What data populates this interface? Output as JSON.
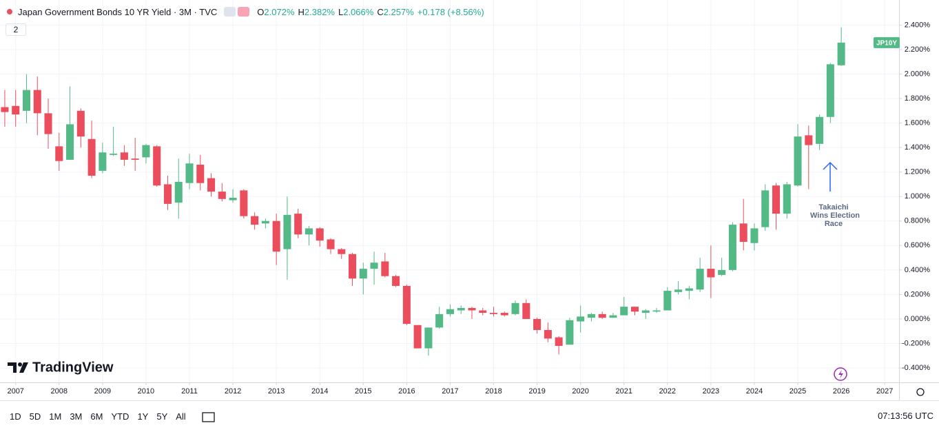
{
  "chart_data": {
    "type": "candlestick",
    "title": "Japan Government Bonds 10 YR Yield · 3M · TVC",
    "ohlc_legend": [
      {
        "label": "O",
        "value": "2.072%"
      },
      {
        "label": "H",
        "value": "2.382%"
      },
      {
        "label": "L",
        "value": "2.066%"
      },
      {
        "label": "C",
        "value": "2.257%"
      }
    ],
    "change": "+0.178 (+8.56%)",
    "indicator_count": 2,
    "symbol_tag": "JP10Y",
    "annotation": [
      "Takaichi",
      "Wins Election",
      "Race"
    ],
    "brand": "TradingView",
    "up_color": "#53b987",
    "down_color": "#eb4d5c",
    "grid": true,
    "x": [
      2006.75,
      2007,
      2007.25,
      2007.5,
      2007.75,
      2008,
      2008.25,
      2008.5,
      2008.75,
      2009,
      2009.25,
      2009.5,
      2009.75,
      2010,
      2010.25,
      2010.5,
      2010.75,
      2011,
      2011.25,
      2011.5,
      2011.75,
      2012,
      2012.25,
      2012.5,
      2012.75,
      2013,
      2013.25,
      2013.5,
      2013.75,
      2014,
      2014.25,
      2014.5,
      2014.75,
      2015,
      2015.25,
      2015.5,
      2015.75,
      2016,
      2016.25,
      2016.5,
      2016.75,
      2017,
      2017.25,
      2017.5,
      2017.75,
      2018,
      2018.25,
      2018.5,
      2018.75,
      2019,
      2019.25,
      2019.5,
      2019.75,
      2020,
      2020.25,
      2020.5,
      2020.75,
      2021,
      2021.25,
      2021.5,
      2021.75,
      2022,
      2022.25,
      2022.5,
      2022.75,
      2023,
      2023.25,
      2023.5,
      2023.75,
      2024,
      2024.25,
      2024.5,
      2024.75,
      2025,
      2025.25,
      2025.5,
      2025.75,
      2026
    ],
    "open": [
      1.73,
      1.74,
      1.7,
      1.87,
      1.68,
      1.41,
      1.3,
      1.7,
      1.47,
      1.21,
      1.34,
      1.36,
      1.31,
      1.32,
      1.41,
      1.1,
      0.95,
      1.11,
      1.26,
      1.15,
      1.04,
      0.97,
      1.05,
      0.84,
      0.78,
      0.8,
      0.57,
      0.86,
      0.69,
      0.74,
      0.65,
      0.57,
      0.53,
      0.33,
      0.41,
      0.47,
      0.35,
      0.27,
      -0.05,
      -0.24,
      -0.07,
      0.04,
      0.07,
      0.09,
      0.07,
      0.05,
      0.05,
      0.04,
      0.13,
      0.0,
      -0.09,
      -0.15,
      -0.21,
      -0.02,
      0.01,
      0.04,
      0.01,
      0.03,
      0.1,
      0.05,
      0.06,
      0.07,
      0.22,
      0.23,
      0.24,
      0.41,
      0.36,
      0.4,
      0.78,
      0.62,
      0.75,
      1.09,
      0.86,
      1.09,
      1.5,
      1.43,
      1.65,
      2.072
    ],
    "high": [
      1.87,
      1.87,
      2.0,
      1.98,
      1.8,
      1.52,
      1.9,
      1.72,
      1.62,
      1.44,
      1.57,
      1.42,
      1.48,
      1.43,
      1.42,
      1.17,
      1.31,
      1.35,
      1.34,
      1.19,
      1.11,
      1.06,
      1.06,
      0.87,
      0.82,
      0.86,
      1.0,
      0.9,
      0.76,
      0.75,
      0.66,
      0.58,
      0.54,
      0.46,
      0.55,
      0.54,
      0.36,
      0.28,
      -0.05,
      -0.07,
      0.1,
      0.12,
      0.11,
      0.1,
      0.09,
      0.1,
      0.06,
      0.15,
      0.16,
      0.01,
      -0.03,
      -0.14,
      0.01,
      0.11,
      0.05,
      0.06,
      0.05,
      0.18,
      0.1,
      0.08,
      0.09,
      0.26,
      0.31,
      0.27,
      0.5,
      0.6,
      0.5,
      0.79,
      0.98,
      0.78,
      1.1,
      1.11,
      1.12,
      1.59,
      1.58,
      1.67,
      2.09,
      2.382
    ],
    "low": [
      1.57,
      1.57,
      1.6,
      1.5,
      1.39,
      1.21,
      1.3,
      1.4,
      1.15,
      1.19,
      1.33,
      1.25,
      1.21,
      1.27,
      1.08,
      0.89,
      0.82,
      1.06,
      1.05,
      1.0,
      0.96,
      0.95,
      0.82,
      0.73,
      0.74,
      0.44,
      0.32,
      0.66,
      0.6,
      0.59,
      0.53,
      0.49,
      0.27,
      0.2,
      0.28,
      0.34,
      0.26,
      -0.05,
      -0.24,
      -0.3,
      -0.08,
      0.02,
      0.04,
      0.0,
      0.03,
      0.02,
      0.02,
      0.03,
      0.0,
      -0.12,
      -0.19,
      -0.29,
      -0.21,
      -0.11,
      -0.02,
      0.0,
      0.01,
      0.03,
      0.03,
      0.0,
      0.05,
      0.07,
      0.2,
      0.16,
      0.22,
      0.17,
      0.35,
      0.39,
      0.56,
      0.56,
      0.72,
      0.73,
      0.82,
      1.08,
      1.06,
      1.38,
      1.6,
      2.066
    ],
    "close": [
      1.69,
      1.67,
      1.87,
      1.68,
      1.51,
      1.29,
      1.59,
      1.49,
      1.17,
      1.36,
      1.35,
      1.3,
      1.3,
      1.42,
      1.09,
      0.94,
      1.12,
      1.27,
      1.11,
      1.04,
      0.98,
      0.99,
      0.84,
      0.77,
      0.8,
      0.55,
      0.85,
      0.69,
      0.74,
      0.64,
      0.57,
      0.53,
      0.33,
      0.41,
      0.46,
      0.35,
      0.27,
      -0.04,
      -0.24,
      -0.07,
      0.04,
      0.08,
      0.09,
      0.07,
      0.05,
      0.04,
      0.03,
      0.13,
      0.0,
      -0.09,
      -0.16,
      -0.22,
      -0.01,
      0.02,
      0.04,
      0.01,
      0.03,
      0.1,
      0.06,
      0.07,
      0.07,
      0.23,
      0.24,
      0.25,
      0.41,
      0.34,
      0.4,
      0.77,
      0.63,
      0.74,
      1.05,
      0.86,
      1.1,
      1.49,
      1.42,
      1.65,
      2.08,
      2.257
    ],
    "xlim": [
      2006.64,
      2027.33
    ],
    "xticks": [
      2007,
      2008,
      2009,
      2010,
      2011,
      2012,
      2013,
      2014,
      2015,
      2016,
      2017,
      2018,
      2019,
      2020,
      2021,
      2022,
      2023,
      2024,
      2025,
      2026,
      2027
    ],
    "ylim": [
      -0.518,
      2.605
    ],
    "yticks": [
      {
        "value": -0.4,
        "label": "-0.400%"
      },
      {
        "value": -0.2,
        "label": "-0.200%"
      },
      {
        "value": 0,
        "label": "0.000%"
      },
      {
        "value": 0.2,
        "label": "0.200%"
      },
      {
        "value": 0.4,
        "label": "0.400%"
      },
      {
        "value": 0.6,
        "label": "0.600%"
      },
      {
        "value": 0.8,
        "label": "0.800%"
      },
      {
        "value": 1.0,
        "label": "1.000%"
      },
      {
        "value": 1.2,
        "label": "1.200%"
      },
      {
        "value": 1.4,
        "label": "1.400%"
      },
      {
        "value": 1.6,
        "label": "1.600%"
      },
      {
        "value": 1.8,
        "label": "1.800%"
      },
      {
        "value": 2.0,
        "label": "2.000%"
      },
      {
        "value": 2.2,
        "label": "2.200%"
      },
      {
        "value": 2.4,
        "label": "2.400%"
      }
    ],
    "ranges": [
      "1D",
      "5D",
      "1M",
      "3M",
      "6M",
      "YTD",
      "1Y",
      "5Y",
      "All"
    ],
    "clock": "07:13:56 UTC"
  }
}
